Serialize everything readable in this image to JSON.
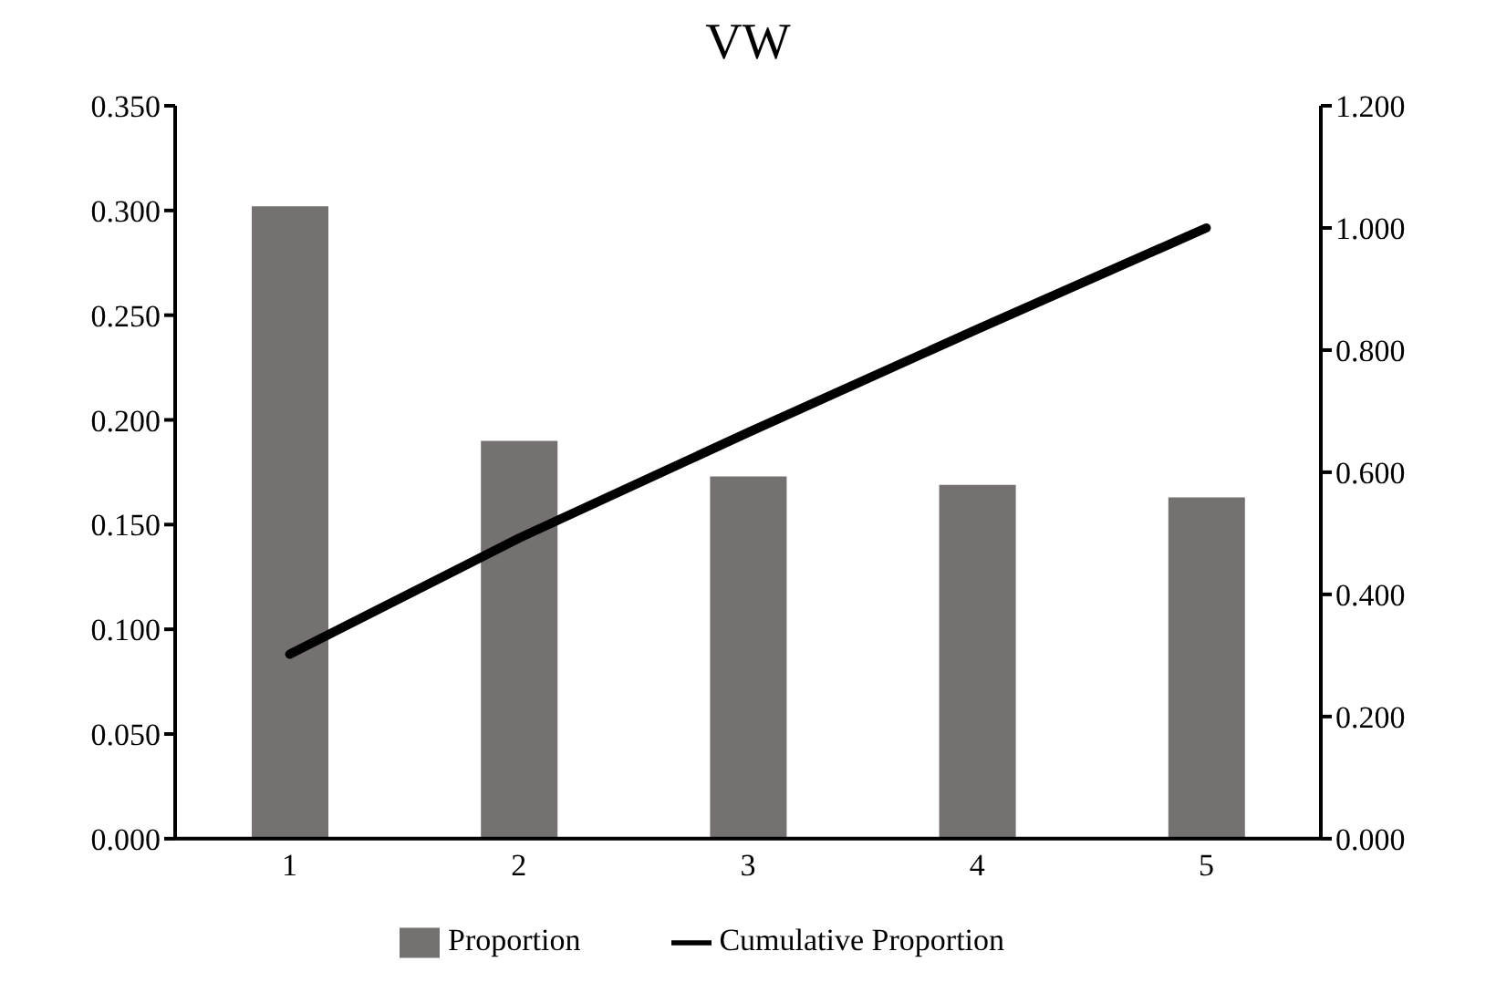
{
  "chart_data": {
    "type": "bar",
    "title": "VW",
    "categories": [
      "1",
      "2",
      "3",
      "4",
      "5"
    ],
    "series": [
      {
        "name": "Proportion",
        "color": "#767171",
        "values": [
          0.302,
          0.19,
          0.173,
          0.169,
          0.163
        ]
      },
      {
        "name": "Cumulative Proportion",
        "type": "line",
        "axis": "y2",
        "color": "#000000",
        "values": [
          0.302,
          0.492,
          0.665,
          0.834,
          1.0
        ]
      }
    ],
    "ylim": [
      0,
      0.35
    ],
    "yticks": [
      {
        "value": 0,
        "label": "0.000"
      },
      {
        "value": 0.05,
        "label": "0.050"
      },
      {
        "value": 0.1,
        "label": "0.100"
      },
      {
        "value": 0.15,
        "label": "0.150"
      },
      {
        "value": 0.2,
        "label": "0.200"
      },
      {
        "value": 0.25,
        "label": "0.250"
      },
      {
        "value": 0.3,
        "label": "0.300"
      },
      {
        "value": 0.35,
        "label": "0.350"
      }
    ],
    "y2lim": [
      0,
      1.2
    ],
    "y2ticks": [
      {
        "value": 0,
        "label": "0.000"
      },
      {
        "value": 0.2,
        "label": "0.200"
      },
      {
        "value": 0.4,
        "label": "0.400"
      },
      {
        "value": 0.6,
        "label": "0.600"
      },
      {
        "value": 0.8,
        "label": "0.800"
      },
      {
        "value": 1,
        "label": "1.000"
      },
      {
        "value": 1.2,
        "label": "1.200"
      }
    ],
    "legend": "bottom",
    "line_style": "solid"
  }
}
